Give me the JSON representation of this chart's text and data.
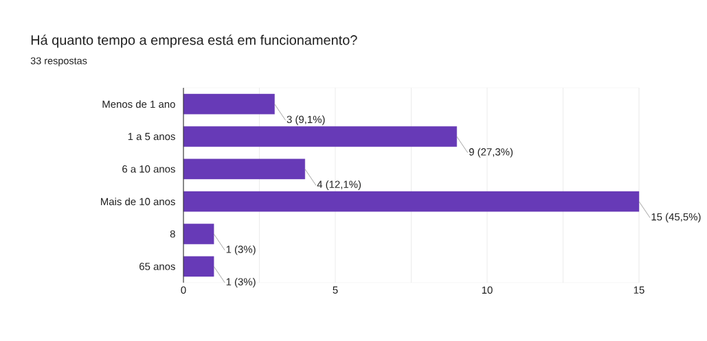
{
  "chart_data": {
    "type": "bar",
    "orientation": "horizontal",
    "title": "Há quanto tempo a empresa está em funcionamento?",
    "subtitle": "33 respostas",
    "categories": [
      "Menos de 1 ano",
      "1 a 5 anos",
      "6 a 10 anos",
      "Mais de 10 anos",
      "8",
      "65 anos"
    ],
    "values": [
      3,
      9,
      4,
      15,
      1,
      1
    ],
    "value_labels": [
      "3 (9,1%)",
      "9 (27,3%)",
      "4 (12,1%)",
      "15 (45,5%)",
      "1 (3%)",
      "1 (3%)"
    ],
    "color": "#673ab7",
    "xlim": [
      0,
      15
    ],
    "xticks": [
      0,
      {
        "value": 2.5,
        "label": null
      },
      5,
      {
        "value": 7.5,
        "label": null
      },
      10,
      {
        "value": 12.5,
        "label": null
      },
      15
    ],
    "grid": "x"
  }
}
